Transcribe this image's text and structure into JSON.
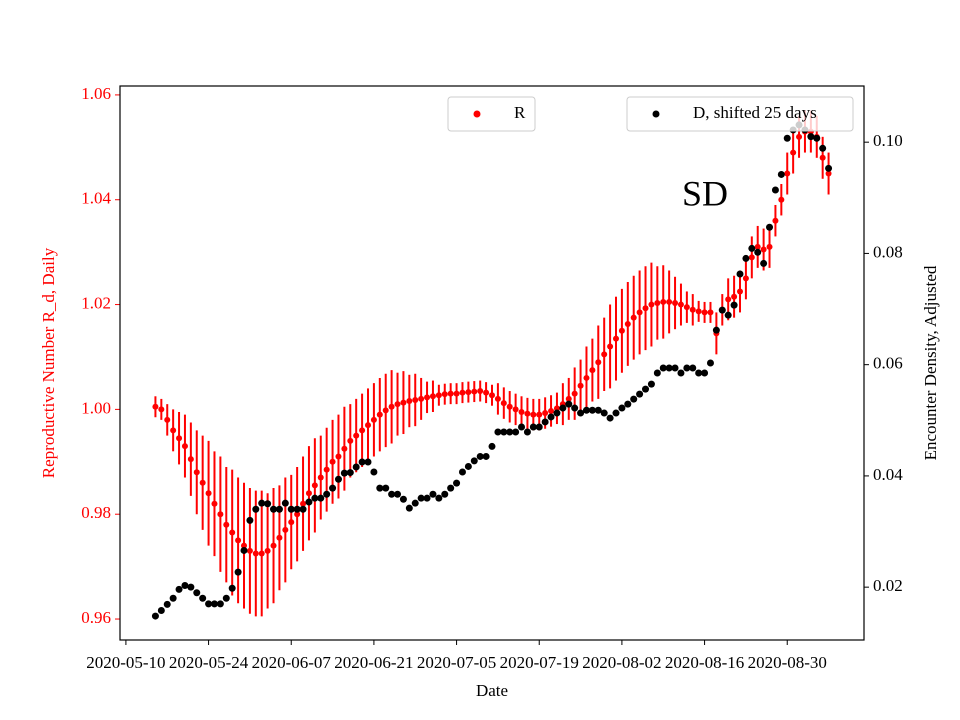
{
  "chart_data": {
    "type": "errorbar",
    "annotation": "SD",
    "xlabel": "Date",
    "ylabel": "Reproductive Number R_d, Daily",
    "y2label": "Encounter Density, Adjusted",
    "ylabel_color": "red",
    "x": [
      "2020-05-15",
      "2020-05-16",
      "2020-05-17",
      "2020-05-18",
      "2020-05-19",
      "2020-05-20",
      "2020-05-21",
      "2020-05-22",
      "2020-05-23",
      "2020-05-24",
      "2020-05-25",
      "2020-05-26",
      "2020-05-27",
      "2020-05-28",
      "2020-05-29",
      "2020-05-30",
      "2020-05-31",
      "2020-06-01",
      "2020-06-02",
      "2020-06-03",
      "2020-06-04",
      "2020-06-05",
      "2020-06-06",
      "2020-06-07",
      "2020-06-08",
      "2020-06-09",
      "2020-06-10",
      "2020-06-11",
      "2020-06-12",
      "2020-06-13",
      "2020-06-14",
      "2020-06-15",
      "2020-06-16",
      "2020-06-17",
      "2020-06-18",
      "2020-06-19",
      "2020-06-20",
      "2020-06-21",
      "2020-06-22",
      "2020-06-23",
      "2020-06-24",
      "2020-06-25",
      "2020-06-26",
      "2020-06-27",
      "2020-06-28",
      "2020-06-29",
      "2020-06-30",
      "2020-07-01",
      "2020-07-02",
      "2020-07-03",
      "2020-07-04",
      "2020-07-05",
      "2020-07-06",
      "2020-07-07",
      "2020-07-08",
      "2020-07-09",
      "2020-07-10",
      "2020-07-11",
      "2020-07-12",
      "2020-07-13",
      "2020-07-14",
      "2020-07-15",
      "2020-07-16",
      "2020-07-17",
      "2020-07-18",
      "2020-07-19",
      "2020-07-20",
      "2020-07-21",
      "2020-07-22",
      "2020-07-23",
      "2020-07-24",
      "2020-07-25",
      "2020-07-26",
      "2020-07-27",
      "2020-07-28",
      "2020-07-29",
      "2020-07-30",
      "2020-07-31",
      "2020-08-01",
      "2020-08-02",
      "2020-08-03",
      "2020-08-04",
      "2020-08-05",
      "2020-08-06",
      "2020-08-07",
      "2020-08-08",
      "2020-08-09",
      "2020-08-10",
      "2020-08-11",
      "2020-08-12",
      "2020-08-13",
      "2020-08-14",
      "2020-08-15",
      "2020-08-16",
      "2020-08-17",
      "2020-08-18",
      "2020-08-19",
      "2020-08-20",
      "2020-08-21",
      "2020-08-22",
      "2020-08-23",
      "2020-08-24",
      "2020-08-25",
      "2020-08-26",
      "2020-08-27",
      "2020-08-28",
      "2020-08-29",
      "2020-08-30",
      "2020-08-31",
      "2020-09-01",
      "2020-09-02",
      "2020-09-03",
      "2020-09-04",
      "2020-09-05",
      "2020-09-06"
    ],
    "xlim": [
      "2020-05-09",
      "2020-09-12"
    ],
    "xticks": [
      "2020-05-10",
      "2020-05-24",
      "2020-06-07",
      "2020-06-21",
      "2020-07-05",
      "2020-07-19",
      "2020-08-02",
      "2020-08-16",
      "2020-08-30"
    ],
    "ylim": [
      0.956,
      1.0617
    ],
    "yticks": [
      0.96,
      0.98,
      {
        "value": 1.0,
        "label": "1.00"
      },
      1.02,
      1.04,
      1.06
    ],
    "y2lim": [
      0.0105,
      0.1101
    ],
    "y2ticks": [
      0.02,
      0.04,
      0.06,
      0.08,
      {
        "value": 0.1,
        "label": "0.10"
      }
    ],
    "series": [
      {
        "name": "R",
        "color": "red",
        "axis": "y",
        "legend_loc": "upper center",
        "values": [
          1.0005,
          1.0,
          0.998,
          0.996,
          0.9945,
          0.993,
          0.9905,
          0.988,
          0.986,
          0.984,
          0.982,
          0.98,
          0.978,
          0.9765,
          0.975,
          0.974,
          0.973,
          0.9725,
          0.9725,
          0.973,
          0.974,
          0.9755,
          0.977,
          0.9785,
          0.98,
          0.982,
          0.984,
          0.9855,
          0.987,
          0.9885,
          0.99,
          0.991,
          0.9925,
          0.994,
          0.995,
          0.996,
          0.997,
          0.998,
          0.999,
          0.9998,
          1.0005,
          1.001,
          1.0013,
          1.0016,
          1.0018,
          1.002,
          1.0023,
          1.0025,
          1.0027,
          1.0029,
          1.003,
          1.003,
          1.0032,
          1.0033,
          1.0034,
          1.0035,
          1.0032,
          1.0027,
          1.002,
          1.0012,
          1.0005,
          1.0,
          0.9995,
          0.9992,
          0.999,
          0.999,
          0.9993,
          0.9997,
          1.0002,
          1.001,
          1.002,
          1.003,
          1.0045,
          1.006,
          1.0075,
          1.009,
          1.0105,
          1.012,
          1.0135,
          1.015,
          1.0163,
          1.0175,
          1.0185,
          1.0193,
          1.02,
          1.0203,
          1.0205,
          1.0205,
          1.0203,
          1.02,
          1.0195,
          1.019,
          1.0187,
          1.0185,
          1.0185,
          1.0145,
          1.019,
          1.021,
          1.0215,
          1.0225,
          1.025,
          1.029,
          1.031,
          1.0305,
          1.031,
          1.036,
          1.04,
          1.045,
          1.049,
          1.052,
          1.053,
          1.053,
          1.052,
          1.048,
          1.045
        ],
        "errors": [
          0.002,
          0.002,
          0.003,
          0.004,
          0.005,
          0.006,
          0.007,
          0.008,
          0.009,
          0.01,
          0.01,
          0.011,
          0.011,
          0.012,
          0.012,
          0.012,
          0.012,
          0.012,
          0.012,
          0.011,
          0.011,
          0.01,
          0.01,
          0.009,
          0.009,
          0.009,
          0.009,
          0.009,
          0.008,
          0.008,
          0.008,
          0.008,
          0.008,
          0.007,
          0.007,
          0.007,
          0.007,
          0.007,
          0.007,
          0.007,
          0.007,
          0.006,
          0.006,
          0.005,
          0.005,
          0.004,
          0.003,
          0.003,
          0.002,
          0.002,
          0.002,
          0.002,
          0.002,
          0.002,
          0.002,
          0.002,
          0.002,
          0.002,
          0.003,
          0.003,
          0.003,
          0.003,
          0.003,
          0.003,
          0.003,
          0.003,
          0.003,
          0.003,
          0.003,
          0.004,
          0.004,
          0.005,
          0.005,
          0.006,
          0.006,
          0.007,
          0.007,
          0.008,
          0.008,
          0.008,
          0.008,
          0.008,
          0.008,
          0.008,
          0.008,
          0.007,
          0.007,
          0.006,
          0.005,
          0.004,
          0.003,
          0.003,
          0.002,
          0.002,
          0.002,
          0.004,
          0.003,
          0.004,
          0.004,
          0.004,
          0.004,
          0.004,
          0.004,
          0.004,
          0.004,
          0.003,
          0.003,
          0.004,
          0.004,
          0.004,
          0.004,
          0.004,
          0.004,
          0.004,
          0.004
        ]
      },
      {
        "name": "D, shifted 25 days",
        "color": "black",
        "axis": "y2",
        "legend_loc": "upper right",
        "values": [
          0.0148,
          0.0158,
          0.0169,
          0.018,
          0.0196,
          0.0203,
          0.02,
          0.019,
          0.018,
          0.017,
          0.017,
          0.017,
          0.018,
          0.0198,
          0.0227,
          0.0266,
          0.032,
          0.034,
          0.0351,
          0.035,
          0.034,
          0.034,
          0.0351,
          0.034,
          0.034,
          0.034,
          0.0353,
          0.036,
          0.036,
          0.0367,
          0.0378,
          0.0394,
          0.0405,
          0.0406,
          0.0416,
          0.0425,
          0.0425,
          0.0407,
          0.0378,
          0.0378,
          0.0367,
          0.0367,
          0.0358,
          0.0342,
          0.0351,
          0.036,
          0.036,
          0.0367,
          0.036,
          0.0367,
          0.0378,
          0.0387,
          0.0407,
          0.0417,
          0.0427,
          0.0435,
          0.0435,
          0.0453,
          0.0479,
          0.0479,
          0.0479,
          0.0479,
          0.0488,
          0.0479,
          0.0488,
          0.0488,
          0.0497,
          0.0506,
          0.0513,
          0.0522,
          0.0529,
          0.0522,
          0.0513,
          0.0518,
          0.0518,
          0.0518,
          0.0513,
          0.0504,
          0.0513,
          0.0522,
          0.0529,
          0.0538,
          0.0547,
          0.0556,
          0.0565,
          0.0585,
          0.0594,
          0.0594,
          0.0594,
          0.0585,
          0.0594,
          0.0594,
          0.0585,
          0.0585,
          0.0603,
          0.0662,
          0.0698,
          0.0689,
          0.0707,
          0.0763,
          0.0791,
          0.0809,
          0.0802,
          0.0782,
          0.0847,
          0.0914,
          0.0942,
          0.1007,
          0.1022,
          0.1031,
          0.1022,
          0.101,
          0.1007,
          0.0989,
          0.0953
        ]
      }
    ]
  }
}
